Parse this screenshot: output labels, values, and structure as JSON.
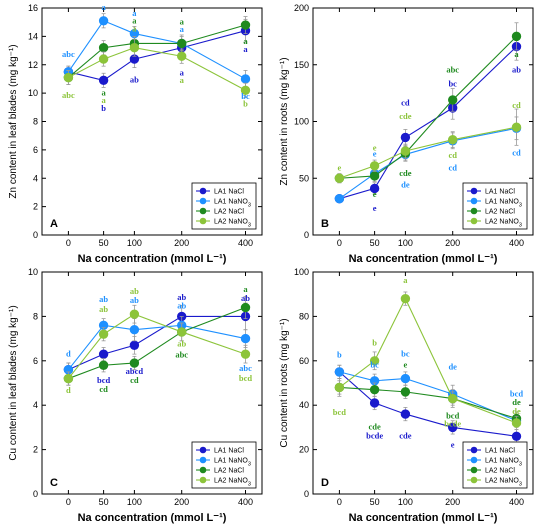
{
  "colors": {
    "LA1 NaCl": "#1a1acc",
    "LA1 NaNO3": "#1e90ff",
    "LA2 NaCl": "#1f8a1f",
    "LA2 NaNO3": "#8cc43a"
  },
  "chart_data": [
    {
      "panel": "A",
      "type": "line",
      "ylabel": "Zn content in leaf blades (mg kg⁻¹)",
      "xlabel": "Na concentration (mmol L⁻¹)",
      "x": [
        0,
        50,
        100,
        200,
        400
      ],
      "ylim": [
        0,
        16
      ],
      "yticks": [
        0,
        2,
        4,
        6,
        8,
        10,
        12,
        14,
        16
      ],
      "legend": "bottom-right",
      "series": [
        {
          "name": "LA1 NaCl",
          "values": [
            11.5,
            10.9,
            12.4,
            13.2,
            14.4
          ],
          "err": [
            0.4,
            0.5,
            0.6,
            0.5,
            0.8
          ]
        },
        {
          "name": "LA1 NaNO3",
          "values": [
            11.5,
            15.1,
            14.2,
            13.5,
            11.0
          ],
          "err": [
            0.4,
            0.5,
            0.5,
            0.5,
            0.6
          ]
        },
        {
          "name": "LA2 NaCl",
          "values": [
            11.1,
            13.2,
            13.5,
            13.5,
            14.8
          ],
          "err": [
            0.5,
            0.5,
            0.5,
            0.6,
            0.6
          ]
        },
        {
          "name": "LA2 NaNO3",
          "values": [
            11.1,
            12.4,
            13.2,
            12.6,
            10.2
          ],
          "err": [
            0.5,
            0.5,
            0.6,
            0.5,
            0.5
          ]
        }
      ],
      "letters": [
        {
          "series": "LA1 NaNO3",
          "x": 0,
          "y": 12.55,
          "text": "abc"
        },
        {
          "series": "LA2 NaNO3",
          "x": 0,
          "y": 9.65,
          "text": "abc"
        },
        {
          "series": "LA1 NaNO3",
          "x": 50,
          "y": 15.85,
          "text": "a"
        },
        {
          "series": "LA2 NaCl",
          "x": 50,
          "y": 9.85,
          "text": "a"
        },
        {
          "series": "LA2 NaNO3",
          "x": 50,
          "y": 9.3,
          "text": "a"
        },
        {
          "series": "LA1 NaCl",
          "x": 50,
          "y": 8.75,
          "text": "b"
        },
        {
          "series": "LA1 NaNO3",
          "x": 100,
          "y": 15.45,
          "text": "a"
        },
        {
          "series": "LA2 NaCl",
          "x": 100,
          "y": 14.9,
          "text": "a"
        },
        {
          "series": "LA2 NaNO3",
          "x": 100,
          "y": 14.35,
          "text": "a"
        },
        {
          "series": "LA1 NaCl",
          "x": 100,
          "y": 10.75,
          "text": "ab"
        },
        {
          "series": "LA2 NaCl",
          "x": 200,
          "y": 14.85,
          "text": "a"
        },
        {
          "series": "LA1 NaNO3",
          "x": 200,
          "y": 14.3,
          "text": "a"
        },
        {
          "series": "LA1 NaCl",
          "x": 200,
          "y": 11.25,
          "text": "a"
        },
        {
          "series": "LA2 NaNO3",
          "x": 200,
          "y": 10.7,
          "text": "a"
        },
        {
          "series": "LA2 NaCl",
          "x": 400,
          "y": 13.45,
          "text": "a"
        },
        {
          "series": "LA1 NaCl",
          "x": 400,
          "y": 12.9,
          "text": "a"
        },
        {
          "series": "LA1 NaNO3",
          "x": 400,
          "y": 9.6,
          "text": "bc"
        },
        {
          "series": "LA2 NaNO3",
          "x": 400,
          "y": 9.05,
          "text": "b"
        }
      ]
    },
    {
      "panel": "B",
      "type": "line",
      "ylabel": "Zn content in roots (mg kg⁻¹)",
      "xlabel": "Na concentration (mmol L⁻¹)",
      "x": [
        0,
        50,
        100,
        200,
        400
      ],
      "ylim": [
        0,
        200
      ],
      "yticks": [
        0,
        50,
        100,
        150,
        200
      ],
      "legend": "bottom-right",
      "series": [
        {
          "name": "LA1 NaCl",
          "values": [
            32,
            41,
            86,
            112,
            166
          ],
          "err": [
            3,
            5,
            7,
            10,
            12
          ]
        },
        {
          "name": "LA1 NaNO3",
          "values": [
            32,
            54,
            71,
            83,
            94
          ],
          "err": [
            3,
            5,
            6,
            7,
            10
          ]
        },
        {
          "name": "LA2 NaCl",
          "values": [
            50,
            52,
            72,
            119,
            175
          ],
          "err": [
            4,
            5,
            6,
            10,
            12
          ]
        },
        {
          "name": "LA2 NaNO3",
          "values": [
            50,
            61,
            74,
            84,
            95
          ],
          "err": [
            4,
            5,
            6,
            7,
            16
          ]
        }
      ],
      "letters": [
        {
          "series": "LA2 NaNO3",
          "x": 0,
          "y": 57,
          "text": "e"
        },
        {
          "series": "LA1 NaNO3",
          "x": 50,
          "y": 69,
          "text": "e"
        },
        {
          "series": "LA2 NaNO3",
          "x": 50,
          "y": 74.5,
          "text": "e"
        },
        {
          "series": "LA2 NaCl",
          "x": 50,
          "y": 33.5,
          "text": "e"
        },
        {
          "series": "LA1 NaCl",
          "x": 50,
          "y": 21,
          "text": "e"
        },
        {
          "series": "LA1 NaCl",
          "x": 100,
          "y": 114,
          "text": "cd"
        },
        {
          "series": "LA2 NaNO3",
          "x": 100,
          "y": 102,
          "text": "cde"
        },
        {
          "series": "LA2 NaCl",
          "x": 100,
          "y": 52,
          "text": "cde"
        },
        {
          "series": "LA1 NaNO3",
          "x": 100,
          "y": 42,
          "text": "de"
        },
        {
          "series": "LA2 NaCl",
          "x": 200,
          "y": 143,
          "text": "abc"
        },
        {
          "series": "LA1 NaCl",
          "x": 200,
          "y": 131,
          "text": "bc"
        },
        {
          "series": "LA2 NaNO3",
          "x": 200,
          "y": 68,
          "text": "cd"
        },
        {
          "series": "LA1 NaNO3",
          "x": 200,
          "y": 57,
          "text": "cd"
        },
        {
          "series": "LA2 NaCl",
          "x": 400,
          "y": 157,
          "text": "a"
        },
        {
          "series": "LA1 NaCl",
          "x": 400,
          "y": 143,
          "text": "ab"
        },
        {
          "series": "LA2 NaNO3",
          "x": 400,
          "y": 112,
          "text": "cd"
        },
        {
          "series": "LA1 NaNO3",
          "x": 400,
          "y": 70,
          "text": "cd"
        }
      ]
    },
    {
      "panel": "C",
      "type": "line",
      "ylabel": "Cu content in leaf blades (mg kg⁻¹)",
      "xlabel": "Na concentration (mmol L⁻¹)",
      "x": [
        0,
        50,
        100,
        200,
        400
      ],
      "ylim": [
        0,
        10
      ],
      "yticks": [
        0,
        2,
        4,
        6,
        8,
        10
      ],
      "legend": "bottom-right",
      "series": [
        {
          "name": "LA1 NaCl",
          "values": [
            5.6,
            6.3,
            6.7,
            8.0,
            8.0
          ],
          "err": [
            0.3,
            0.3,
            0.4,
            0.5,
            0.6
          ]
        },
        {
          "name": "LA1 NaNO3",
          "values": [
            5.6,
            7.6,
            7.4,
            7.6,
            7.0
          ],
          "err": [
            0.3,
            0.3,
            0.5,
            0.4,
            0.4
          ]
        },
        {
          "name": "LA2 NaCl",
          "values": [
            5.2,
            5.8,
            5.9,
            7.3,
            8.4
          ],
          "err": [
            0.3,
            0.3,
            0.3,
            0.4,
            0.5
          ]
        },
        {
          "name": "LA2 NaNO3",
          "values": [
            5.2,
            7.2,
            8.1,
            7.3,
            6.3
          ],
          "err": [
            0.3,
            0.3,
            0.4,
            0.4,
            0.4
          ]
        }
      ],
      "letters": [
        {
          "series": "LA1 NaNO3",
          "x": 0,
          "y": 6.2,
          "text": "d"
        },
        {
          "series": "LA2 NaNO3",
          "x": 0,
          "y": 4.55,
          "text": "d"
        },
        {
          "series": "LA1 NaNO3",
          "x": 50,
          "y": 8.65,
          "text": "ab"
        },
        {
          "series": "LA2 NaNO3",
          "x": 50,
          "y": 8.2,
          "text": "ab"
        },
        {
          "series": "LA1 NaCl",
          "x": 50,
          "y": 5.0,
          "text": "bcd"
        },
        {
          "series": "LA2 NaCl",
          "x": 50,
          "y": 4.6,
          "text": "cd"
        },
        {
          "series": "LA2 NaNO3",
          "x": 100,
          "y": 9.0,
          "text": "ab"
        },
        {
          "series": "LA1 NaNO3",
          "x": 100,
          "y": 8.6,
          "text": "ab"
        },
        {
          "series": "LA1 NaCl",
          "x": 100,
          "y": 5.4,
          "text": "abcd"
        },
        {
          "series": "LA2 NaCl",
          "x": 100,
          "y": 5.0,
          "text": "cd"
        },
        {
          "series": "LA1 NaCl",
          "x": 200,
          "y": 8.75,
          "text": "ab"
        },
        {
          "series": "LA1 NaNO3",
          "x": 200,
          "y": 8.35,
          "text": "ab"
        },
        {
          "series": "LA2 NaNO3",
          "x": 200,
          "y": 6.65,
          "text": "ab"
        },
        {
          "series": "LA2 NaCl",
          "x": 200,
          "y": 6.15,
          "text": "abc"
        },
        {
          "series": "LA2 NaCl",
          "x": 400,
          "y": 9.1,
          "text": "a"
        },
        {
          "series": "LA1 NaCl",
          "x": 400,
          "y": 8.7,
          "text": "ab"
        },
        {
          "series": "LA1 NaNO3",
          "x": 400,
          "y": 5.55,
          "text": "abc"
        },
        {
          "series": "LA2 NaNO3",
          "x": 400,
          "y": 5.1,
          "text": "bcd"
        }
      ]
    },
    {
      "panel": "D",
      "type": "line",
      "ylabel": "Cu content in roots (mg kg⁻¹)",
      "xlabel": "Na concentration (mmol L⁻¹)",
      "x": [
        0,
        50,
        100,
        200,
        400
      ],
      "ylim": [
        0,
        100
      ],
      "yticks": [
        0,
        20,
        40,
        60,
        80,
        100
      ],
      "legend": "bottom-right",
      "series": [
        {
          "name": "LA1 NaCl",
          "values": [
            55,
            41,
            36,
            30,
            26
          ],
          "err": [
            3,
            3,
            3,
            3,
            3
          ]
        },
        {
          "name": "LA1 NaNO3",
          "values": [
            55,
            51,
            52,
            45,
            33
          ],
          "err": [
            3,
            3,
            3,
            4,
            3
          ]
        },
        {
          "name": "LA2 NaCl",
          "values": [
            48,
            47,
            46,
            43,
            34
          ],
          "err": [
            3,
            3,
            3,
            3,
            3
          ]
        },
        {
          "name": "LA2 NaNO3",
          "values": [
            48,
            60,
            88,
            43,
            32
          ],
          "err": [
            4,
            4,
            3,
            4,
            3
          ]
        }
      ],
      "letters": [
        {
          "series": "LA1 NaNO3",
          "x": 0,
          "y": 61.5,
          "text": "b"
        },
        {
          "series": "LA2 NaNO3",
          "x": 0,
          "y": 35.5,
          "text": "bcd"
        },
        {
          "series": "LA2 NaNO3",
          "x": 50,
          "y": 67,
          "text": "b"
        },
        {
          "series": "LA1 NaNO3",
          "x": 50,
          "y": 57,
          "text": "bc"
        },
        {
          "series": "LA2 NaCl",
          "x": 50,
          "y": 29,
          "text": "cde"
        },
        {
          "series": "LA1 NaCl",
          "x": 50,
          "y": 25,
          "text": "bcde"
        },
        {
          "series": "LA2 NaNO3",
          "x": 100,
          "y": 95,
          "text": "a"
        },
        {
          "series": "LA1 NaNO3",
          "x": 100,
          "y": 62,
          "text": "bc"
        },
        {
          "series": "LA2 NaCl",
          "x": 100,
          "y": 57,
          "text": "e"
        },
        {
          "series": "LA1 NaCl",
          "x": 100,
          "y": 25,
          "text": "cde"
        },
        {
          "series": "LA1 NaNO3",
          "x": 200,
          "y": 56,
          "text": "de"
        },
        {
          "series": "LA2 NaCl",
          "x": 200,
          "y": 34,
          "text": "bcd"
        },
        {
          "series": "LA2 NaNO3",
          "x": 200,
          "y": 30.5,
          "text": "bcde"
        },
        {
          "series": "LA1 NaCl",
          "x": 200,
          "y": 21,
          "text": "e"
        },
        {
          "series": "LA1 NaNO3",
          "x": 400,
          "y": 44,
          "text": "bcd"
        },
        {
          "series": "LA2 NaCl",
          "x": 400,
          "y": 40,
          "text": "de"
        },
        {
          "series": "LA2 NaNO3",
          "x": 400,
          "y": 36,
          "text": "de"
        },
        {
          "series": "LA1 NaCl",
          "x": 400,
          "y": 17,
          "text": "e"
        }
      ]
    }
  ]
}
